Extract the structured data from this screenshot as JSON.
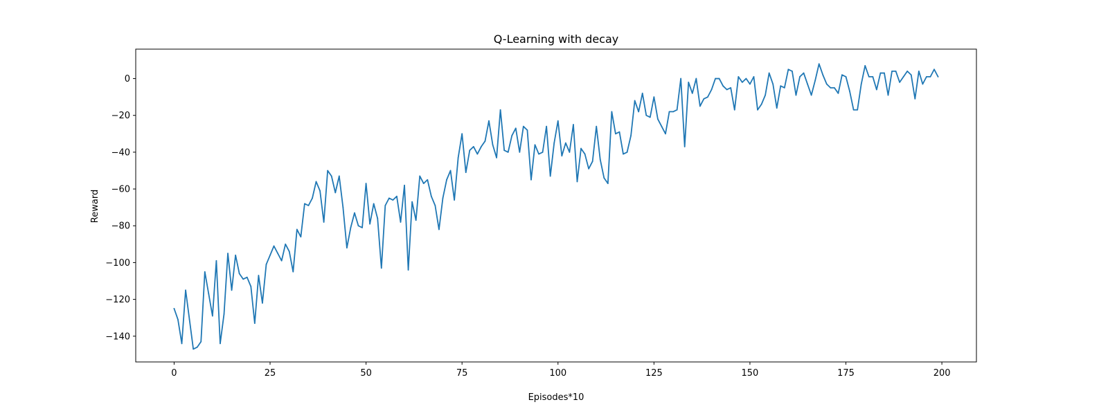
{
  "chart_data": {
    "type": "line",
    "title": "Q-Learning with decay",
    "xlabel": "Episodes*10",
    "ylabel": "Reward",
    "xlim": [
      -10,
      209
    ],
    "ylim": [
      -154,
      16
    ],
    "grid": false,
    "xticks": [
      0,
      25,
      50,
      75,
      100,
      125,
      150,
      175,
      200
    ],
    "yticks": [
      -140,
      -120,
      -100,
      -80,
      -60,
      -40,
      -20,
      0
    ],
    "xtick_labels": [
      "0",
      "25",
      "50",
      "75",
      "100",
      "125",
      "150",
      "175",
      "200"
    ],
    "ytick_labels": [
      "−140",
      "−120",
      "−100",
      "−80",
      "−60",
      "−40",
      "−20",
      "0"
    ],
    "colors": {
      "line": "#1f77b4",
      "axes": "#000000",
      "background": "#ffffff"
    },
    "series": [
      {
        "x": [
          0,
          1,
          2,
          3,
          4,
          5,
          6,
          7,
          8,
          9,
          10,
          11,
          12,
          13,
          14,
          15,
          16,
          17,
          18,
          19,
          20,
          21,
          22,
          23,
          24,
          25,
          26,
          27,
          28,
          29,
          30,
          31,
          32,
          33,
          34,
          35,
          36,
          37,
          38,
          39,
          40,
          41,
          42,
          43,
          44,
          45,
          46,
          47,
          48,
          49,
          50,
          51,
          52,
          53,
          54,
          55,
          56,
          57,
          58,
          59,
          60,
          61,
          62,
          63,
          64,
          65,
          66,
          67,
          68,
          69,
          70,
          71,
          72,
          73,
          74,
          75,
          76,
          77,
          78,
          79,
          80,
          81,
          82,
          83,
          84,
          85,
          86,
          87,
          88,
          89,
          90,
          91,
          92,
          93,
          94,
          95,
          96,
          97,
          98,
          99,
          100,
          101,
          102,
          103,
          104,
          105,
          106,
          107,
          108,
          109,
          110,
          111,
          112,
          113,
          114,
          115,
          116,
          117,
          118,
          119,
          120,
          121,
          122,
          123,
          124,
          125,
          126,
          127,
          128,
          129,
          130,
          131,
          132,
          133,
          134,
          135,
          136,
          137,
          138,
          139,
          140,
          141,
          142,
          143,
          144,
          145,
          146,
          147,
          148,
          149,
          150,
          151,
          152,
          153,
          154,
          155,
          156,
          157,
          158,
          159,
          160,
          161,
          162,
          163,
          164,
          165,
          166,
          167,
          168,
          169,
          170,
          171,
          172,
          173,
          174,
          175,
          176,
          177,
          178,
          179,
          180,
          181,
          182,
          183,
          184,
          185,
          186,
          187,
          188,
          189,
          190,
          191,
          192,
          193,
          194,
          195,
          196,
          197,
          198,
          199
        ],
        "values": [
          -125,
          -131,
          -144,
          -115,
          -131,
          -147,
          -146,
          -143,
          -105,
          -117,
          -129,
          -99,
          -144,
          -128,
          -95,
          -115,
          -96,
          -106,
          -109,
          -108,
          -113,
          -133,
          -107,
          -122,
          -101,
          -96,
          -91,
          -95,
          -99,
          -90,
          -94,
          -105,
          -82,
          -86,
          -68,
          -69,
          -65,
          -56,
          -61,
          -78,
          -50,
          -53,
          -62,
          -53,
          -70,
          -92,
          -81,
          -73,
          -80,
          -81,
          -57,
          -79,
          -68,
          -76,
          -103,
          -69,
          -65,
          -66,
          -64,
          -78,
          -58,
          -104,
          -67,
          -77,
          -53,
          -57,
          -55,
          -64,
          -69,
          -82,
          -65,
          -55,
          -50,
          -66,
          -43,
          -30,
          -51,
          -39,
          -37,
          -41,
          -37,
          -34,
          -23,
          -36,
          -43,
          -17,
          -39,
          -40,
          -31,
          -27,
          -40,
          -26,
          -28,
          -55,
          -36,
          -41,
          -40,
          -26,
          -53,
          -35,
          -23,
          -42,
          -35,
          -40,
          -25,
          -56,
          -38,
          -41,
          -49,
          -45,
          -26,
          -44,
          -54,
          -57,
          -18,
          -30,
          -29,
          -41,
          -40,
          -31,
          -12,
          -18,
          -8,
          -20,
          -21,
          -10,
          -22,
          -26,
          -30,
          -18,
          -18,
          -17,
          0,
          -37,
          -2,
          -8,
          0,
          -15,
          -11,
          -10,
          -6,
          0,
          0,
          -4,
          -6,
          -5,
          -17,
          1,
          -2,
          0,
          -3,
          1,
          -17,
          -14,
          -9,
          3,
          -3,
          -16,
          -4,
          -5,
          5,
          4,
          -9,
          1,
          3,
          -3,
          -9,
          -1,
          8,
          2,
          -3,
          -5,
          -5,
          -8,
          2,
          1,
          -7,
          -17,
          -17,
          -3,
          7,
          1,
          1,
          -6,
          3,
          3,
          -9,
          4,
          4,
          -2,
          1,
          4,
          2,
          -11,
          4,
          -3,
          1,
          1,
          5,
          1
        ]
      }
    ]
  }
}
